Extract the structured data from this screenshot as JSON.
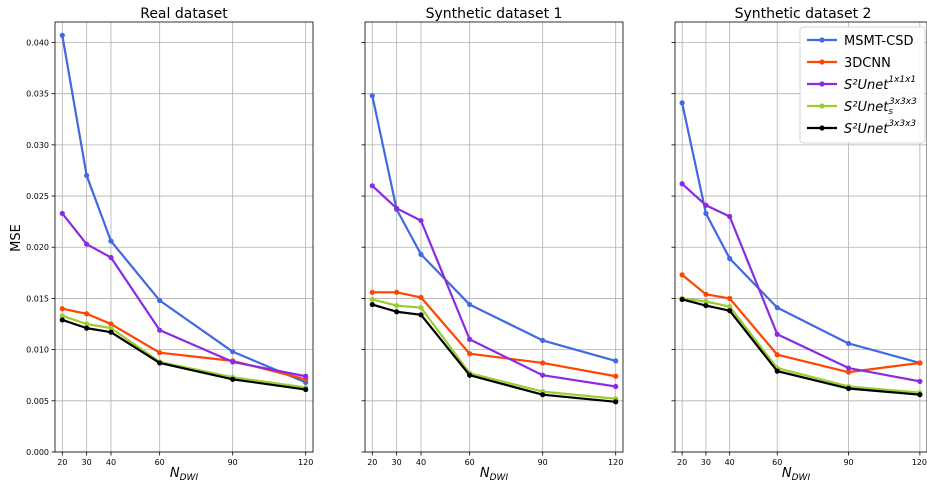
{
  "chart_data": {
    "type": "line",
    "ylabel": "MSE",
    "ylim": [
      0,
      0.042
    ],
    "yticks": [
      "0.000",
      "0.005",
      "0.010",
      "0.015",
      "0.020",
      "0.025",
      "0.030",
      "0.035",
      "0.040"
    ],
    "x": [
      20,
      30,
      40,
      60,
      90,
      120
    ],
    "xticks": [
      "20",
      "30",
      "40",
      "60",
      "90",
      "120"
    ],
    "xlabel_main": "N",
    "xlabel_sub": "DWI",
    "grid": true,
    "legend": {
      "placement": "top-right",
      "entries": [
        {
          "base": "MSMT-CSD",
          "sup": "",
          "sub": ""
        },
        {
          "base": "3DCNN",
          "sup": "",
          "sub": ""
        },
        {
          "base": "S²Unet",
          "sup": "1x1x1",
          "sub": ""
        },
        {
          "base": "S²Unet",
          "sup": "3x3x3",
          "sub": "s"
        },
        {
          "base": "S²Unet",
          "sup": "3x3x3",
          "sub": ""
        }
      ]
    },
    "colors": [
      "#4169e1",
      "#ff4500",
      "#8a2be2",
      "#9acd32",
      "#000000"
    ],
    "panels": [
      {
        "title": "Real dataset",
        "xticks_visible": [
          "20",
          "30",
          "40",
          "60",
          "90",
          "120"
        ],
        "series": [
          {
            "values": [
              0.0407,
              0.027,
              0.0206,
              0.0148,
              0.0098,
              0.0068
            ]
          },
          {
            "values": [
              0.014,
              0.0135,
              0.0125,
              0.0097,
              0.0089,
              0.0071
            ]
          },
          {
            "values": [
              0.0233,
              0.0203,
              0.019,
              0.0119,
              0.0088,
              0.0074
            ]
          },
          {
            "values": [
              0.0133,
              0.0125,
              0.0121,
              0.0088,
              0.0073,
              0.0063
            ]
          },
          {
            "values": [
              0.0129,
              0.0121,
              0.0117,
              0.0087,
              0.0071,
              0.0061
            ]
          }
        ]
      },
      {
        "title": "Synthetic dataset 1",
        "xticks_visible": [
          "20",
          "30",
          "40",
          "60",
          "90",
          "120"
        ],
        "series": [
          {
            "values": [
              0.0348,
              0.0237,
              0.0193,
              0.0144,
              0.0109,
              0.0089
            ]
          },
          {
            "values": [
              0.0156,
              0.0156,
              0.0151,
              0.0096,
              0.0087,
              0.0074
            ]
          },
          {
            "values": [
              0.026,
              0.0238,
              0.0226,
              0.011,
              0.0075,
              0.0064
            ]
          },
          {
            "values": [
              0.0149,
              0.0143,
              0.0141,
              0.0077,
              0.0059,
              0.0052
            ]
          },
          {
            "values": [
              0.0144,
              0.0137,
              0.0134,
              0.0075,
              0.0056,
              0.0049
            ]
          }
        ]
      },
      {
        "title": "Synthetic dataset 2",
        "xticks_visible": [
          "20",
          "30",
          "40",
          "60",
          "90",
          "120"
        ],
        "series": [
          {
            "values": [
              0.0341,
              0.0233,
              0.0189,
              0.0141,
              0.0106,
              0.0087
            ]
          },
          {
            "values": [
              0.0173,
              0.0154,
              0.015,
              0.0095,
              0.0078,
              0.0087
            ]
          },
          {
            "values": [
              0.0262,
              0.0241,
              0.023,
              0.0115,
              0.0082,
              0.0069
            ]
          },
          {
            "values": [
              0.015,
              0.0147,
              0.0142,
              0.0082,
              0.0064,
              0.0058
            ]
          },
          {
            "values": [
              0.0149,
              0.0143,
              0.0138,
              0.0079,
              0.0062,
              0.0056
            ]
          }
        ]
      }
    ]
  }
}
